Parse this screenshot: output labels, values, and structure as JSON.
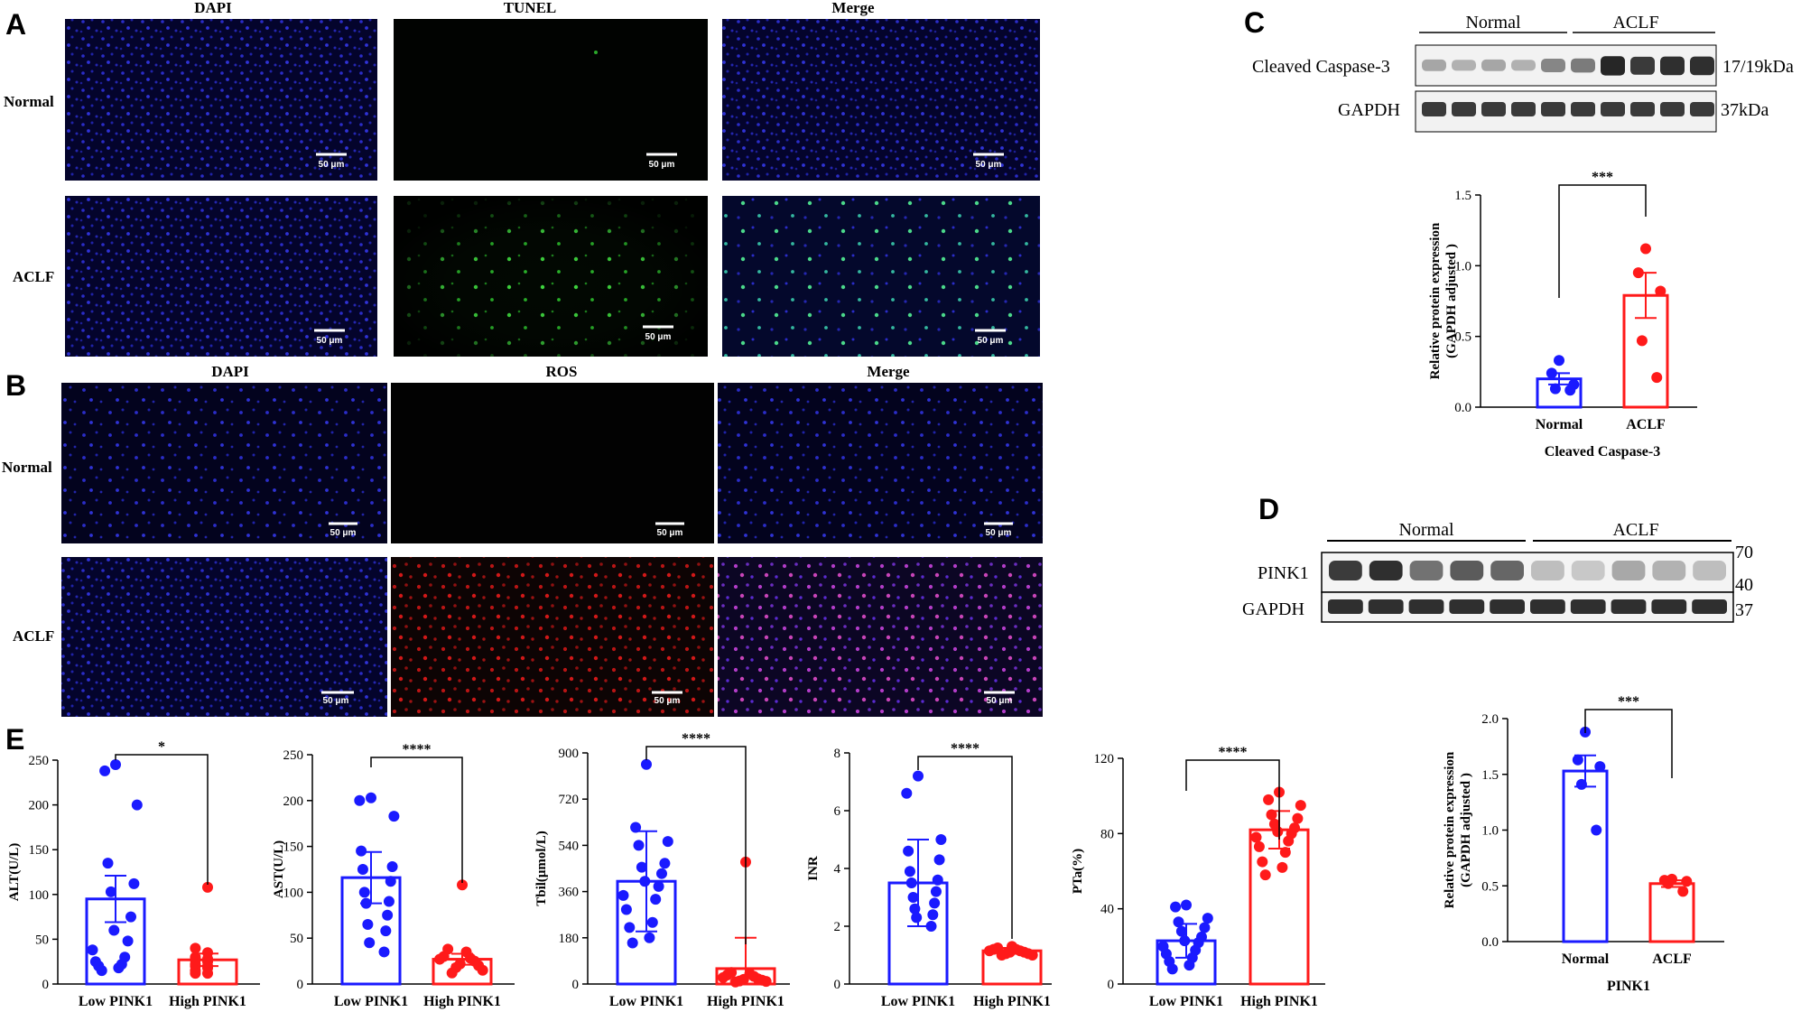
{
  "panel_labels": {
    "a": "A",
    "b": "B",
    "c": "C",
    "d": "D",
    "e": "E"
  },
  "panel_a": {
    "columns": [
      "DAPI",
      "TUNEL",
      "Merge"
    ],
    "rows": [
      "Normal",
      "ACLF"
    ],
    "scale_bar": "50 μm"
  },
  "panel_b": {
    "columns": [
      "DAPI",
      "ROS",
      "Merge"
    ],
    "rows": [
      "Normal",
      "ACLF"
    ],
    "scale_bar": "50 μm"
  },
  "panel_c_blot": {
    "groups": [
      "Normal",
      "ACLF"
    ],
    "rows": [
      {
        "label": "Cleaved Caspase-3",
        "size": "17/19kDa"
      },
      {
        "label": "GAPDH",
        "size": "37kDa"
      }
    ]
  },
  "panel_d_blot": {
    "groups": [
      "Normal",
      "ACLF"
    ],
    "rows": [
      {
        "label": "PINK1"
      },
      {
        "label": "GAPDH"
      }
    ],
    "markers": [
      "70",
      "40",
      "37"
    ]
  },
  "colors": {
    "normal": "#1a1aff",
    "aclf": "#ff1a1a",
    "blot_band": "#1a1a1a"
  },
  "chart_data": [
    {
      "id": "c-bar",
      "type": "bar",
      "categories": [
        "Normal",
        "ACLF"
      ],
      "values": [
        0.2,
        0.79
      ],
      "errors": [
        0.04,
        0.16
      ],
      "points": [
        [
          0.33,
          0.24,
          0.16,
          0.13,
          0.12
        ],
        [
          1.12,
          0.95,
          0.82,
          0.47,
          0.21
        ]
      ],
      "ylim": [
        0,
        1.5
      ],
      "yticks": [
        "0.0",
        "0.5",
        "1.0",
        "1.5"
      ],
      "ytick_values": [
        0,
        0.5,
        1.0,
        1.5
      ],
      "ylabel": "Relative protein expression (GAPDH adjusted )",
      "xlabel": "Cleaved Caspase-3",
      "significance": "***"
    },
    {
      "id": "d-bar",
      "type": "bar",
      "categories": [
        "Normal",
        "ACLF"
      ],
      "values": [
        1.53,
        0.52
      ],
      "errors": [
        0.14,
        0.03
      ],
      "points": [
        [
          1.88,
          1.63,
          1.57,
          1.41,
          1.0
        ],
        [
          0.56,
          0.55,
          0.54,
          0.52,
          0.45
        ]
      ],
      "ylim": [
        0,
        2.0
      ],
      "yticks": [
        "0.0",
        "0.5",
        "1.0",
        "1.5",
        "2.0"
      ],
      "ytick_values": [
        0,
        0.5,
        1.0,
        1.5,
        2.0
      ],
      "ylabel": "Relative protein expression (GAPDH adjusted )",
      "xlabel": "PINK1",
      "significance": "***"
    },
    {
      "id": "e-alt",
      "type": "bar",
      "categories": [
        "Low PINK1",
        "High PINK1"
      ],
      "values": [
        95,
        27
      ],
      "errors": [
        26,
        7
      ],
      "points": [
        [
          245,
          238,
          200,
          135,
          112,
          103,
          75,
          60,
          48,
          38,
          30,
          25,
          22,
          20,
          18,
          15
        ],
        [
          108,
          40,
          35,
          30,
          28,
          27,
          25,
          22,
          20,
          20,
          18,
          15,
          12,
          12
        ]
      ],
      "ylim": [
        0,
        250
      ],
      "yticks": [
        "0",
        "50",
        "100",
        "150",
        "200",
        "250"
      ],
      "ytick_values": [
        0,
        50,
        100,
        150,
        200,
        250
      ],
      "ylabel": "ALT(U/L)",
      "significance": "*"
    },
    {
      "id": "e-ast",
      "type": "bar",
      "categories": [
        "Low PINK1",
        "High PINK1"
      ],
      "values": [
        116,
        27
      ],
      "errors": [
        28,
        6
      ],
      "points": [
        [
          203,
          200,
          183,
          145,
          128,
          125,
          112,
          100,
          90,
          88,
          75,
          65,
          58,
          45,
          35
        ],
        [
          108,
          38,
          35,
          30,
          28,
          27,
          25,
          22,
          20,
          18,
          15,
          12
        ]
      ],
      "ylim": [
        0,
        250
      ],
      "yticks": [
        "0",
        "50",
        "100",
        "150",
        "200",
        "250"
      ],
      "ytick_values": [
        0,
        50,
        100,
        150,
        200,
        250
      ],
      "ylabel": "AST(U/L)",
      "significance": "****"
    },
    {
      "id": "e-tbil",
      "type": "bar",
      "categories": [
        "Low PINK1",
        "High PINK1"
      ],
      "values": [
        400,
        60
      ],
      "errors": [
        195,
        120
      ],
      "points": [
        [
          855,
          610,
          555,
          540,
          470,
          455,
          430,
          400,
          380,
          345,
          330,
          290,
          240,
          220,
          180,
          160
        ],
        [
          475,
          45,
          40,
          35,
          30,
          25,
          20,
          18,
          15,
          12,
          10,
          8
        ]
      ],
      "ylim": [
        0,
        900
      ],
      "yticks": [
        "0",
        "180",
        "360",
        "540",
        "720",
        "900"
      ],
      "ytick_values": [
        0,
        180,
        360,
        540,
        720,
        900
      ],
      "ylabel": "Tbil(μmol/L)",
      "significance": "****"
    },
    {
      "id": "e-inr",
      "type": "bar",
      "categories": [
        "Low PINK1",
        "High PINK1"
      ],
      "values": [
        3.5,
        1.15
      ],
      "errors": [
        1.5,
        0.1
      ],
      "points": [
        [
          7.2,
          6.6,
          5.0,
          4.6,
          4.3,
          3.9,
          3.6,
          3.5,
          3.2,
          3.0,
          2.8,
          2.6,
          2.4,
          2.3,
          2.0
        ],
        [
          1.3,
          1.25,
          1.2,
          1.2,
          1.15,
          1.15,
          1.1,
          1.1,
          1.05,
          1.05,
          1.0,
          1.0
        ]
      ],
      "ylim": [
        0,
        8
      ],
      "yticks": [
        "0",
        "2",
        "4",
        "6",
        "8"
      ],
      "ytick_values": [
        0,
        2,
        4,
        6,
        8
      ],
      "ylabel": "INR",
      "significance": "****"
    },
    {
      "id": "e-pta",
      "type": "bar",
      "categories": [
        "Low PINK1",
        "High PINK1"
      ],
      "values": [
        23,
        82
      ],
      "errors": [
        9,
        10
      ],
      "points": [
        [
          42,
          41,
          35,
          33,
          30,
          28,
          25,
          23,
          22,
          20,
          18,
          16,
          14,
          12,
          10,
          8
        ],
        [
          102,
          98,
          95,
          90,
          88,
          85,
          83,
          81,
          80,
          78,
          76,
          73,
          70,
          65,
          62,
          58
        ]
      ],
      "ylim": [
        0,
        120
      ],
      "yticks": [
        "0",
        "40",
        "80",
        "120"
      ],
      "ytick_values": [
        0,
        40,
        80,
        120
      ],
      "ylabel": "PTa(%)",
      "significance": "****"
    }
  ]
}
